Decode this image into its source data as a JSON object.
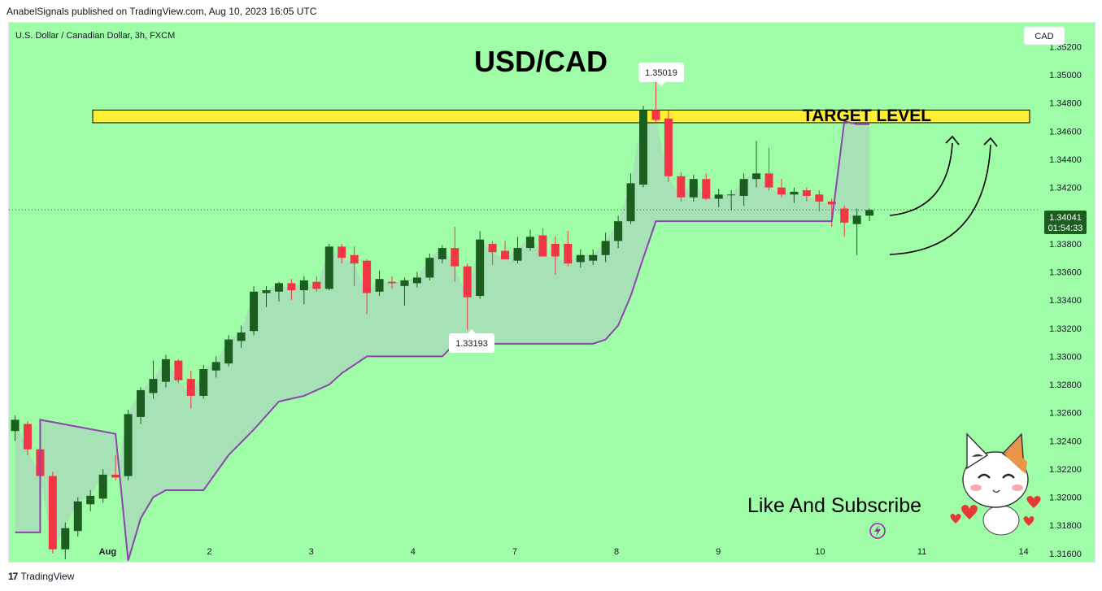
{
  "header": {
    "published": "AnabelSignals published on TradingView.com, Aug 10, 2023 16:05 UTC"
  },
  "symbol": {
    "description": "U.S. Dollar / Canadian Dollar, 3h, FXCM"
  },
  "currency_button": "CAD",
  "footer": {
    "brand": "TradingView",
    "logo": "17"
  },
  "colors": {
    "background": "#9ffda8",
    "bull": "#1b5e20",
    "bear": "#f23645",
    "trail": "#8e44ad",
    "band": "#a8dcb8",
    "target": "#ffee33"
  },
  "chart_data": {
    "type": "candlestick",
    "title": "USD/CAD",
    "x_ticks": [
      "Aug",
      "2",
      "3",
      "4",
      "7",
      "8",
      "9",
      "10",
      "11",
      "14"
    ],
    "y_ticks": [
      "1.35200",
      "1.35000",
      "1.34800",
      "1.34600",
      "1.34400",
      "1.34200",
      "1.33800",
      "1.33600",
      "1.33400",
      "1.33200",
      "1.33000",
      "1.32800",
      "1.32600",
      "1.32400",
      "1.32200",
      "1.32000",
      "1.31800",
      "1.31600"
    ],
    "ylim": [
      1.3153,
      1.3537
    ],
    "current_price": "1.34041",
    "countdown": "01:54:33",
    "high_label": "1.35019",
    "low_label": "1.33193",
    "annotations": {
      "target": "TARGET LEVEL",
      "cta": "Like And Subscribe"
    },
    "target_zone": [
      1.3466,
      1.3475
    ],
    "candles": [
      {
        "i": 0,
        "o": 1.3247,
        "h": 1.3258,
        "l": 1.324,
        "c": 1.3255
      },
      {
        "i": 1,
        "o": 1.3252,
        "h": 1.3254,
        "l": 1.323,
        "c": 1.3234
      },
      {
        "i": 2,
        "o": 1.3234,
        "h": 1.3236,
        "l": 1.3212,
        "c": 1.3215
      },
      {
        "i": 3,
        "o": 1.3215,
        "h": 1.3218,
        "l": 1.316,
        "c": 1.3163
      },
      {
        "i": 4,
        "o": 1.3163,
        "h": 1.3182,
        "l": 1.3156,
        "c": 1.3178
      },
      {
        "i": 5,
        "o": 1.3176,
        "h": 1.32,
        "l": 1.3172,
        "c": 1.3197
      },
      {
        "i": 6,
        "o": 1.3195,
        "h": 1.3205,
        "l": 1.319,
        "c": 1.3201
      },
      {
        "i": 7,
        "o": 1.3199,
        "h": 1.322,
        "l": 1.3196,
        "c": 1.3216
      },
      {
        "i": 8,
        "o": 1.3216,
        "h": 1.323,
        "l": 1.3212,
        "c": 1.3214
      },
      {
        "i": 9,
        "o": 1.3215,
        "h": 1.3262,
        "l": 1.3212,
        "c": 1.3259
      },
      {
        "i": 10,
        "o": 1.3257,
        "h": 1.3278,
        "l": 1.3252,
        "c": 1.3276
      },
      {
        "i": 11,
        "o": 1.3274,
        "h": 1.3297,
        "l": 1.327,
        "c": 1.3284
      },
      {
        "i": 12,
        "o": 1.3282,
        "h": 1.3301,
        "l": 1.3278,
        "c": 1.3298
      },
      {
        "i": 13,
        "o": 1.3297,
        "h": 1.3298,
        "l": 1.3281,
        "c": 1.3283
      },
      {
        "i": 14,
        "o": 1.3284,
        "h": 1.329,
        "l": 1.3263,
        "c": 1.3272
      },
      {
        "i": 15,
        "o": 1.3272,
        "h": 1.3294,
        "l": 1.327,
        "c": 1.3291
      },
      {
        "i": 16,
        "o": 1.329,
        "h": 1.33,
        "l": 1.3285,
        "c": 1.3296
      },
      {
        "i": 17,
        "o": 1.3295,
        "h": 1.3315,
        "l": 1.3293,
        "c": 1.3312
      },
      {
        "i": 18,
        "o": 1.3311,
        "h": 1.3322,
        "l": 1.3306,
        "c": 1.3317
      },
      {
        "i": 19,
        "o": 1.3318,
        "h": 1.335,
        "l": 1.3315,
        "c": 1.3346
      },
      {
        "i": 20,
        "o": 1.3345,
        "h": 1.335,
        "l": 1.3335,
        "c": 1.3347
      },
      {
        "i": 21,
        "o": 1.3346,
        "h": 1.3353,
        "l": 1.3339,
        "c": 1.3352
      },
      {
        "i": 22,
        "o": 1.3352,
        "h": 1.3355,
        "l": 1.334,
        "c": 1.3347
      },
      {
        "i": 23,
        "o": 1.3347,
        "h": 1.3357,
        "l": 1.3337,
        "c": 1.3354
      },
      {
        "i": 24,
        "o": 1.3353,
        "h": 1.3357,
        "l": 1.3346,
        "c": 1.3348
      },
      {
        "i": 25,
        "o": 1.3348,
        "h": 1.338,
        "l": 1.3347,
        "c": 1.3378
      },
      {
        "i": 26,
        "o": 1.3378,
        "h": 1.338,
        "l": 1.3366,
        "c": 1.337
      },
      {
        "i": 27,
        "o": 1.3372,
        "h": 1.3378,
        "l": 1.335,
        "c": 1.3366
      },
      {
        "i": 28,
        "o": 1.3368,
        "h": 1.3369,
        "l": 1.333,
        "c": 1.3345
      },
      {
        "i": 29,
        "o": 1.3346,
        "h": 1.3361,
        "l": 1.3343,
        "c": 1.3355
      },
      {
        "i": 30,
        "o": 1.3353,
        "h": 1.3357,
        "l": 1.3348,
        "c": 1.3352
      },
      {
        "i": 31,
        "o": 1.335,
        "h": 1.3356,
        "l": 1.3336,
        "c": 1.3354
      },
      {
        "i": 32,
        "o": 1.3352,
        "h": 1.336,
        "l": 1.3349,
        "c": 1.3356
      },
      {
        "i": 33,
        "o": 1.3356,
        "h": 1.3373,
        "l": 1.3354,
        "c": 1.337
      },
      {
        "i": 34,
        "o": 1.3369,
        "h": 1.3379,
        "l": 1.3366,
        "c": 1.3377
      },
      {
        "i": 35,
        "o": 1.3377,
        "h": 1.3392,
        "l": 1.3353,
        "c": 1.3364
      },
      {
        "i": 36,
        "o": 1.3364,
        "h": 1.3366,
        "l": 1.3319,
        "c": 1.3342
      },
      {
        "i": 37,
        "o": 1.3343,
        "h": 1.3389,
        "l": 1.3341,
        "c": 1.3383
      },
      {
        "i": 38,
        "o": 1.338,
        "h": 1.3382,
        "l": 1.3365,
        "c": 1.3374
      },
      {
        "i": 39,
        "o": 1.3375,
        "h": 1.3382,
        "l": 1.3369,
        "c": 1.3369
      },
      {
        "i": 40,
        "o": 1.3368,
        "h": 1.3385,
        "l": 1.3366,
        "c": 1.3377
      },
      {
        "i": 41,
        "o": 1.3377,
        "h": 1.339,
        "l": 1.3375,
        "c": 1.3385
      },
      {
        "i": 42,
        "o": 1.3386,
        "h": 1.3391,
        "l": 1.3371,
        "c": 1.3371
      },
      {
        "i": 43,
        "o": 1.338,
        "h": 1.3385,
        "l": 1.3358,
        "c": 1.3371
      },
      {
        "i": 44,
        "o": 1.338,
        "h": 1.3389,
        "l": 1.3364,
        "c": 1.3366
      },
      {
        "i": 45,
        "o": 1.3367,
        "h": 1.3376,
        "l": 1.3363,
        "c": 1.3372
      },
      {
        "i": 46,
        "o": 1.3368,
        "h": 1.3376,
        "l": 1.3365,
        "c": 1.3372
      },
      {
        "i": 47,
        "o": 1.3372,
        "h": 1.3388,
        "l": 1.3367,
        "c": 1.3382
      },
      {
        "i": 48,
        "o": 1.3382,
        "h": 1.34,
        "l": 1.3377,
        "c": 1.3396
      },
      {
        "i": 49,
        "o": 1.3396,
        "h": 1.343,
        "l": 1.3394,
        "c": 1.3423
      },
      {
        "i": 50,
        "o": 1.3422,
        "h": 1.3478,
        "l": 1.342,
        "c": 1.3475
      },
      {
        "i": 51,
        "o": 1.3475,
        "h": 1.3502,
        "l": 1.3466,
        "c": 1.3468
      },
      {
        "i": 52,
        "o": 1.3469,
        "h": 1.3475,
        "l": 1.3424,
        "c": 1.3428
      },
      {
        "i": 53,
        "o": 1.3428,
        "h": 1.3431,
        "l": 1.341,
        "c": 1.3413
      },
      {
        "i": 54,
        "o": 1.3413,
        "h": 1.3429,
        "l": 1.341,
        "c": 1.3426
      },
      {
        "i": 55,
        "o": 1.3426,
        "h": 1.343,
        "l": 1.3411,
        "c": 1.3412
      },
      {
        "i": 56,
        "o": 1.3412,
        "h": 1.3419,
        "l": 1.3406,
        "c": 1.3415
      },
      {
        "i": 57,
        "o": 1.3415,
        "h": 1.3418,
        "l": 1.3404,
        "c": 1.3415
      },
      {
        "i": 58,
        "o": 1.3414,
        "h": 1.343,
        "l": 1.3407,
        "c": 1.3426
      },
      {
        "i": 59,
        "o": 1.3426,
        "h": 1.3453,
        "l": 1.342,
        "c": 1.343
      },
      {
        "i": 60,
        "o": 1.343,
        "h": 1.3448,
        "l": 1.3418,
        "c": 1.342
      },
      {
        "i": 61,
        "o": 1.342,
        "h": 1.3426,
        "l": 1.3413,
        "c": 1.3415
      },
      {
        "i": 62,
        "o": 1.3415,
        "h": 1.342,
        "l": 1.3409,
        "c": 1.3417
      },
      {
        "i": 63,
        "o": 1.3418,
        "h": 1.342,
        "l": 1.341,
        "c": 1.3414
      },
      {
        "i": 64,
        "o": 1.3415,
        "h": 1.3418,
        "l": 1.3403,
        "c": 1.341
      },
      {
        "i": 65,
        "o": 1.341,
        "h": 1.3412,
        "l": 1.3392,
        "c": 1.3408
      },
      {
        "i": 66,
        "o": 1.3405,
        "h": 1.3407,
        "l": 1.3385,
        "c": 1.3395
      },
      {
        "i": 67,
        "o": 1.3394,
        "h": 1.3405,
        "l": 1.3372,
        "c": 1.34
      },
      {
        "i": 68,
        "o": 1.34,
        "h": 1.3405,
        "l": 1.3396,
        "c": 1.3404
      }
    ],
    "trailing_stop": [
      [
        0,
        1.3175
      ],
      [
        2,
        1.3175
      ],
      [
        2,
        1.3255
      ],
      [
        8,
        1.3245
      ],
      [
        9,
        1.3155
      ],
      [
        10,
        1.3185
      ],
      [
        11,
        1.32
      ],
      [
        12,
        1.3205
      ],
      [
        14,
        1.3205
      ],
      [
        15,
        1.3205
      ],
      [
        17,
        1.323
      ],
      [
        19,
        1.3248
      ],
      [
        21,
        1.3268
      ],
      [
        23,
        1.3272
      ],
      [
        25,
        1.328
      ],
      [
        26,
        1.3288
      ],
      [
        28,
        1.33
      ],
      [
        30,
        1.33
      ],
      [
        32,
        1.33
      ],
      [
        34,
        1.33
      ],
      [
        35,
        1.3309
      ],
      [
        36,
        1.3309
      ],
      [
        38,
        1.3309
      ],
      [
        40,
        1.3309
      ],
      [
        42,
        1.3309
      ],
      [
        44,
        1.3309
      ],
      [
        46,
        1.3309
      ],
      [
        47,
        1.3312
      ],
      [
        48,
        1.3322
      ],
      [
        49,
        1.3343
      ],
      [
        50,
        1.337
      ],
      [
        51,
        1.3396
      ],
      [
        51,
        1.3396
      ],
      [
        52,
        1.3396
      ],
      [
        56,
        1.3396
      ],
      [
        60,
        1.3396
      ],
      [
        64,
        1.3396
      ],
      [
        65,
        1.3396
      ],
      [
        66,
        1.3467
      ],
      [
        67,
        1.3465
      ],
      [
        68,
        1.3465
      ]
    ]
  }
}
